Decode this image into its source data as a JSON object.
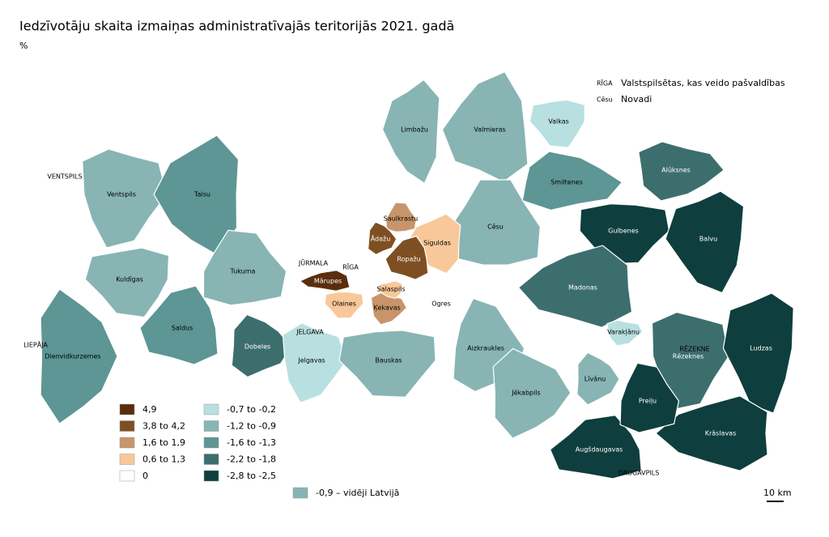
{
  "header": {
    "title": "Iedzīvotāju skaita izmaiņas administratīvajās teritorijās 2021. gadā",
    "unit": "%"
  },
  "key": [
    {
      "abbr": "RĪGA",
      "text": "Valstspilsētas, kas veido pašvaldības"
    },
    {
      "abbr": "Cēsu",
      "text": "Novadi"
    }
  ],
  "legend": [
    {
      "label": "4,9",
      "color": "#5a2d0c"
    },
    {
      "label": "3,8 to 4,2",
      "color": "#7f4f24"
    },
    {
      "label": "1,6 to 1,9",
      "color": "#c8956a"
    },
    {
      "label": "0,6 to 1,3",
      "color": "#f8c89a"
    },
    {
      "label": "0",
      "color": "#ffffff"
    },
    {
      "label": "-0,7 to -0,2",
      "color": "#b8e0e0"
    },
    {
      "label": "-1,2 to -0,9",
      "color": "#88b4b4"
    },
    {
      "label": "-1,6 to -1,3",
      "color": "#5e9595"
    },
    {
      "label": "-2,2 to -1,8",
      "color": "#3d6e6e"
    },
    {
      "label": "-2,8 to -2,5",
      "color": "#0f3e3e"
    }
  ],
  "average": {
    "label": "-0,9 – vidēji Latvijā",
    "color": "#88b4b4"
  },
  "scale": "10 km",
  "regions": [
    {
      "label": "Dienvidkurzemes",
      "color": "#5e9595"
    },
    {
      "label": "Ventspils",
      "color": "#88b4b4"
    },
    {
      "label": "Kuldīgas",
      "color": "#88b4b4"
    },
    {
      "label": "Talsu",
      "color": "#5e9595"
    },
    {
      "label": "Saldus",
      "color": "#5e9595"
    },
    {
      "label": "Tukuma",
      "color": "#88b4b4"
    },
    {
      "label": "Dobeles",
      "color": "#3d6e6e"
    },
    {
      "label": "Jelgavas",
      "color": "#b8e0e0"
    },
    {
      "label": "Bauskas",
      "color": "#88b4b4"
    },
    {
      "label": "Limbažu",
      "color": "#88b4b4"
    },
    {
      "label": "Valmieras",
      "color": "#88b4b4"
    },
    {
      "label": "Cēsu",
      "color": "#88b4b4"
    },
    {
      "label": "Smiltenes",
      "color": "#5e9595"
    },
    {
      "label": "Alūksnes",
      "color": "#3d6e6e"
    },
    {
      "label": "Gulbenes",
      "color": "#0f3e3e"
    },
    {
      "label": "Balvu",
      "color": "#0f3e3e"
    },
    {
      "label": "Madonas",
      "color": "#3d6e6e"
    },
    {
      "label": "Ogres",
      "color": "#ffffff"
    },
    {
      "label": "Aizkraukles",
      "color": "#88b4b4"
    },
    {
      "label": "Jēkabpils",
      "color": "#88b4b4"
    },
    {
      "label": "Rēzeknes",
      "color": "#3d6e6e"
    },
    {
      "label": "Ludzas",
      "color": "#0f3e3e"
    },
    {
      "label": "Krāslavas",
      "color": "#0f3e3e"
    },
    {
      "label": "Augšdaugavas",
      "color": "#0f3e3e"
    },
    {
      "label": "Preiļu",
      "color": "#0f3e3e"
    },
    {
      "label": "Līvānu",
      "color": "#88b4b4"
    },
    {
      "label": "Varakļānu",
      "color": "#b8e0e0"
    },
    {
      "label": "Valkas",
      "color": "#b8e0e0"
    },
    {
      "label": "Siguldas",
      "color": "#f8c89a"
    },
    {
      "label": "Ropažu",
      "color": "#7f4f24"
    },
    {
      "label": "Saulkrastu",
      "color": "#c8956a"
    },
    {
      "label": "Ādažu",
      "color": "#7f4f24"
    },
    {
      "label": "Ķekavas",
      "color": "#c8956a"
    },
    {
      "label": "Olaines",
      "color": "#f8c89a"
    },
    {
      "label": "Salaspils",
      "color": "#f8c89a"
    },
    {
      "label": "Mārupes",
      "color": "#5a2d0c"
    }
  ],
  "cities": [
    {
      "label": "VENTSPILS"
    },
    {
      "label": "LIEPĀJA"
    },
    {
      "label": "JŪRMALA"
    },
    {
      "label": "RĪGA"
    },
    {
      "label": "JELGAVA"
    },
    {
      "label": "RĒZEKNE"
    },
    {
      "label": "DAUGAVPILS"
    }
  ]
}
